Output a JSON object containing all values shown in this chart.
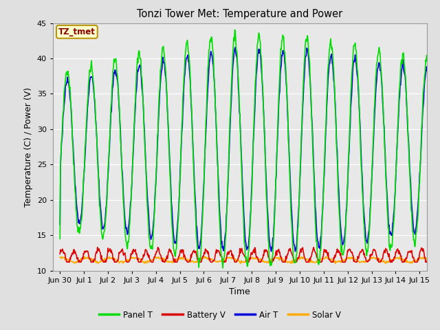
{
  "title": "Tonzi Tower Met: Temperature and Power",
  "xlabel": "Time",
  "ylabel": "Temperature (C) / Power (V)",
  "ylim": [
    10,
    45
  ],
  "background_color": "#e0e0e0",
  "plot_bg_color": "#e8e8e8",
  "annotation_text": "TZ_tmet",
  "annotation_color": "#8b0000",
  "annotation_bg": "#ffffcc",
  "annotation_edge": "#b8960c",
  "grid_color": "#ffffff",
  "colors": {
    "panel_t": "#00dd00",
    "battery_v": "#dd0000",
    "air_t": "#0000dd",
    "solar_v": "#ffaa00"
  },
  "legend_labels": [
    "Panel T",
    "Battery V",
    "Air T",
    "Solar V"
  ],
  "xtick_labels": [
    "Jun 30",
    "Jul 1",
    "Jul 2",
    "Jul 3",
    "Jul 4",
    "Jul 5",
    "Jul 6",
    "Jul 7",
    "Jul 8",
    "Jul 9",
    "Jul 10",
    "Jul 11",
    "Jul 12",
    "Jul 13",
    "Jul 14",
    "Jul 15"
  ],
  "xtick_positions": [
    0,
    1,
    2,
    3,
    4,
    5,
    6,
    7,
    8,
    9,
    10,
    11,
    12,
    13,
    14,
    15
  ],
  "ytick_positions": [
    10,
    15,
    20,
    25,
    30,
    35,
    40,
    45
  ]
}
